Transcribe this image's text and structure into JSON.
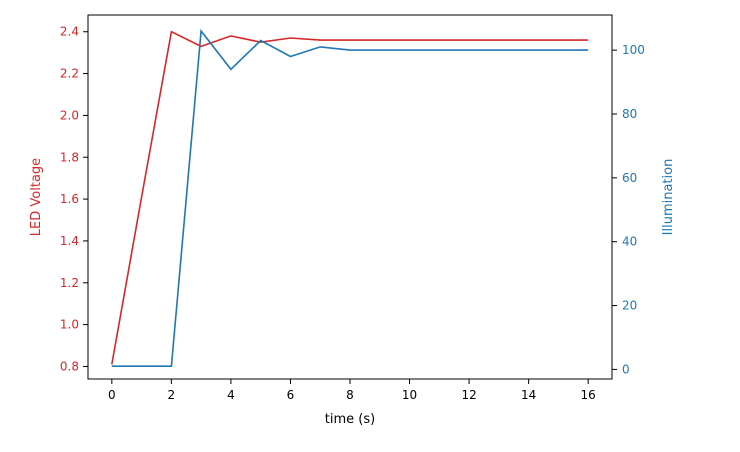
{
  "chart_data": {
    "type": "line",
    "xlabel": "time (s)",
    "xlim": [
      -0.8,
      16.8
    ],
    "xticks": [
      0,
      2,
      4,
      6,
      8,
      10,
      12,
      14,
      16
    ],
    "grid": false,
    "legend": "none",
    "left_axis": {
      "label": "LED Voltage",
      "color": "#d62728",
      "ylim": [
        0.74,
        2.48
      ],
      "ticks": [
        "0.8",
        "1.0",
        "1.2",
        "1.4",
        "1.6",
        "1.8",
        "2.0",
        "2.2",
        "2.4"
      ]
    },
    "right_axis": {
      "label": "Illumination",
      "color": "#1f77b4",
      "ylim": [
        -3,
        111
      ],
      "ticks": [
        "0",
        "20",
        "40",
        "60",
        "80",
        "100"
      ]
    },
    "series": [
      {
        "axis": "left",
        "color": "#d62728",
        "x": [
          0,
          1,
          2,
          3,
          4,
          5,
          6,
          7,
          8,
          9,
          10,
          11,
          12,
          13,
          14,
          15,
          16
        ],
        "values": [
          0.81,
          1.61,
          2.4,
          2.33,
          2.38,
          2.35,
          2.37,
          2.36,
          2.36,
          2.36,
          2.36,
          2.36,
          2.36,
          2.36,
          2.36,
          2.36,
          2.36
        ]
      },
      {
        "axis": "right",
        "color": "#1f77b4",
        "x": [
          0,
          1,
          2,
          3,
          4,
          5,
          6,
          7,
          8,
          9,
          10,
          11,
          12,
          13,
          14,
          15,
          16
        ],
        "values": [
          1,
          1,
          1,
          106,
          94,
          103,
          98,
          101,
          100,
          100,
          100,
          100,
          100,
          100,
          100,
          100,
          100
        ]
      }
    ]
  }
}
